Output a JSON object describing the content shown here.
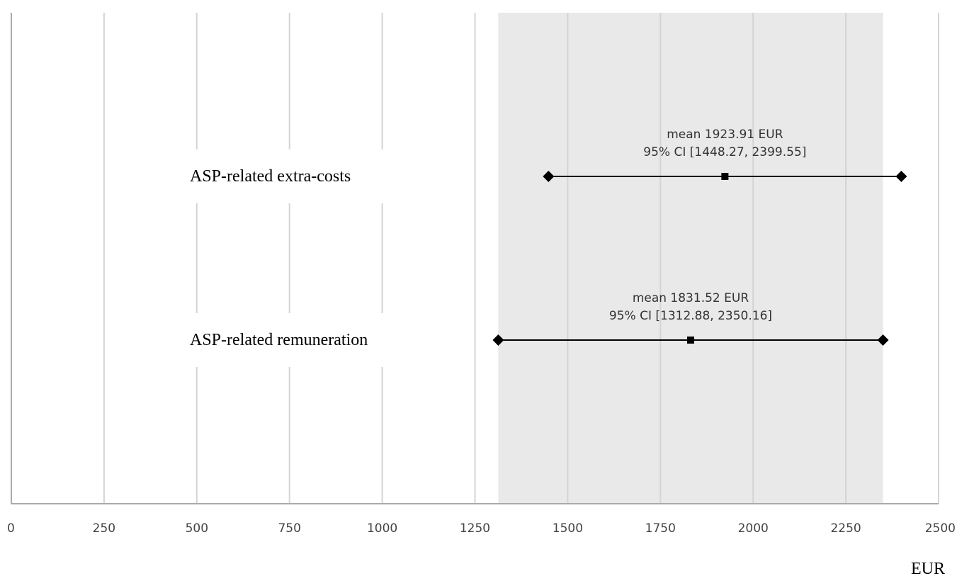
{
  "chart_data": {
    "type": "forest-interval",
    "x": {
      "min": 0,
      "max": 2500,
      "ticks": [
        0,
        250,
        500,
        750,
        1000,
        1250,
        1500,
        1750,
        2000,
        2250,
        2500
      ],
      "tick_labels": [
        "0",
        "250",
        "500",
        "750",
        "1000",
        "1250",
        "1500",
        "1750",
        "2000",
        "2250",
        "2500"
      ],
      "unit_label": "EUR"
    },
    "grid": true,
    "shaded_band": {
      "x_from": 1312.88,
      "x_to": 2350.16,
      "color": "#e9e9e9"
    },
    "rows": [
      {
        "label": "ASP-related extra-costs",
        "mean": 1923.91,
        "ci_low": 1448.27,
        "ci_high": 2399.55,
        "annotation_line1": "mean 1923.91 EUR",
        "annotation_line2": "95% CI [1448.27, 2399.55]"
      },
      {
        "label": "ASP-related remuneration",
        "mean": 1831.52,
        "ci_low": 1312.88,
        "ci_high": 2350.16,
        "annotation_line1": "mean 1831.52 EUR",
        "annotation_line2": "95% CI [1312.88, 2350.16]"
      }
    ],
    "colors": {
      "marker": "#000000",
      "gridline": "#d4d4d4",
      "axis": "#aaaaaa"
    }
  }
}
